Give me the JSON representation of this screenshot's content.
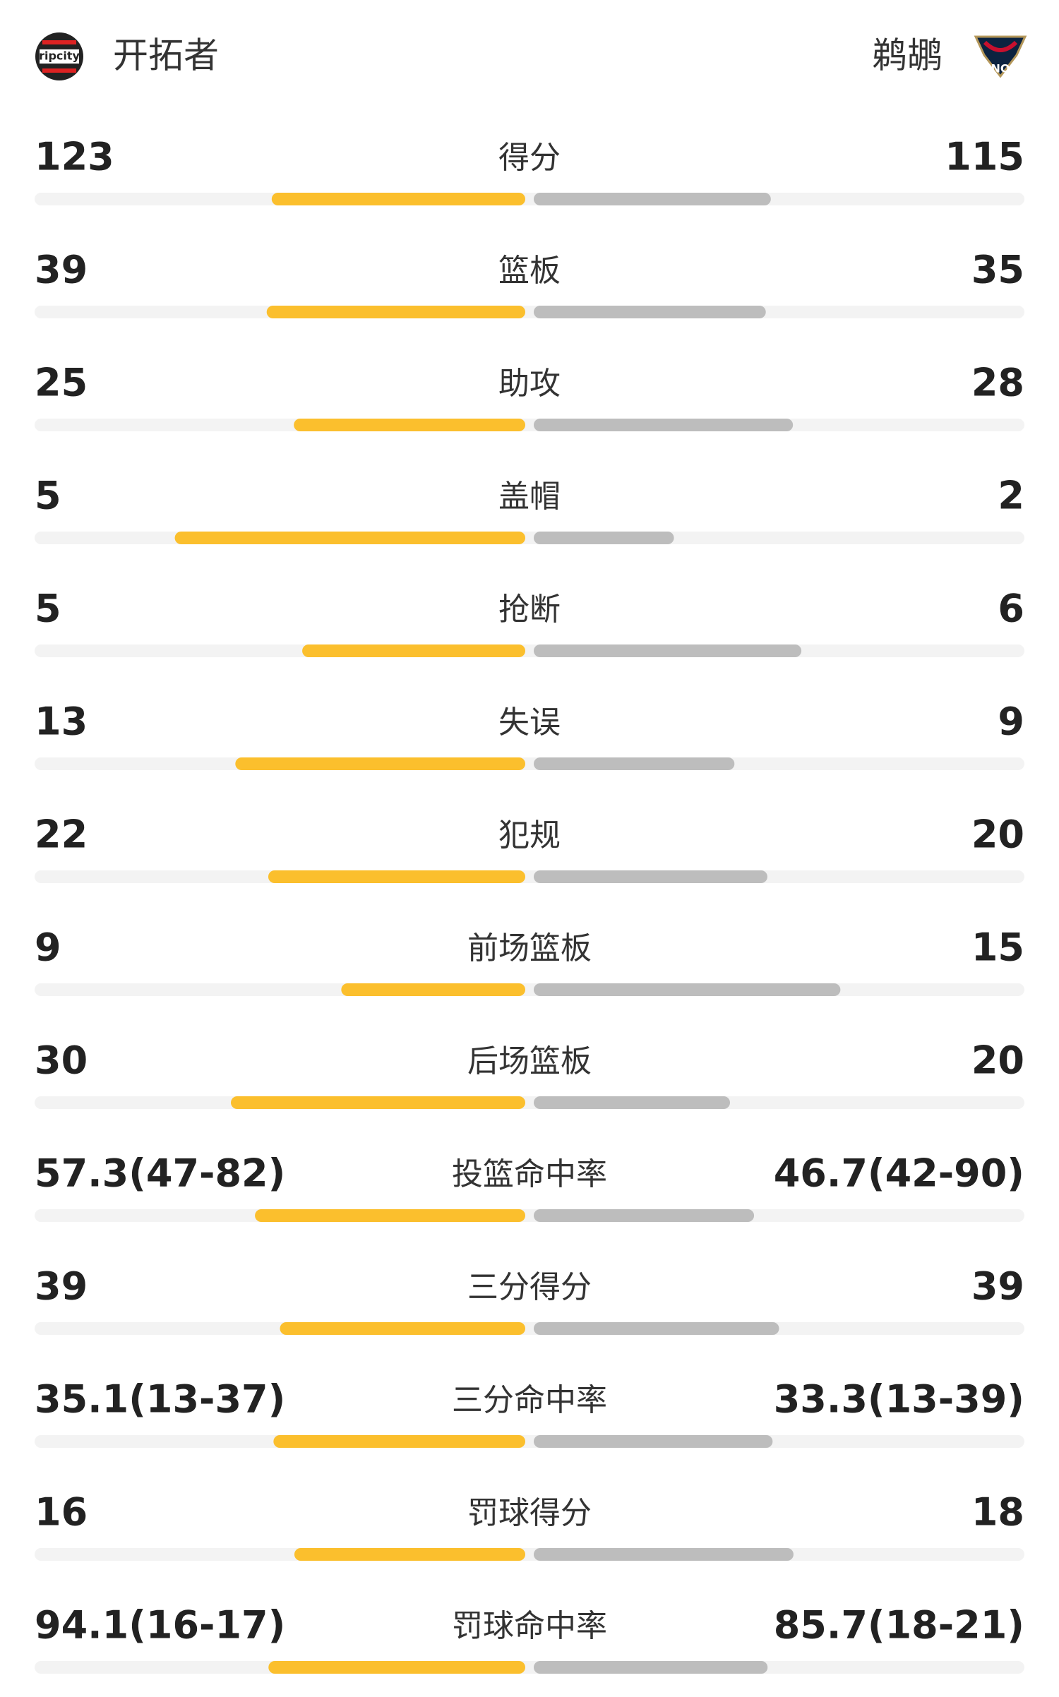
{
  "header": {
    "home": "开拓者",
    "away": "鹈鹕"
  },
  "colors": {
    "home": "#fbbf2d",
    "away": "#bdbdbd"
  },
  "stats": [
    {
      "name": "得分",
      "home": 123,
      "away": 115
    },
    {
      "name": "篮板",
      "home": 39,
      "away": 35
    },
    {
      "name": "助攻",
      "home": 25,
      "away": 28
    },
    {
      "name": "盖帽",
      "home": 5,
      "away": 2
    },
    {
      "name": "抢断",
      "home": 5,
      "away": 6
    },
    {
      "name": "失误",
      "home": 13,
      "away": 9
    },
    {
      "name": "犯规",
      "home": 22,
      "away": 20
    },
    {
      "name": "前场篮板",
      "home": 9,
      "away": 15
    },
    {
      "name": "后场篮板",
      "home": 30,
      "away": 20
    },
    {
      "name": "投篮命中率",
      "home": 57.3,
      "away": 46.7,
      "home_label": "57.3(47-82)",
      "away_label": "46.7(42-90)"
    },
    {
      "name": "三分得分",
      "home": 39,
      "away": 39
    },
    {
      "name": "三分命中率",
      "home": 35.1,
      "away": 33.3,
      "home_label": "35.1(13-37)",
      "away_label": "33.3(13-39)"
    },
    {
      "name": "罚球得分",
      "home": 16,
      "away": 18
    },
    {
      "name": "罚球命中率",
      "home": 94.1,
      "away": 85.7,
      "home_label": "94.1(16-17)",
      "away_label": "85.7(18-21)"
    }
  ]
}
